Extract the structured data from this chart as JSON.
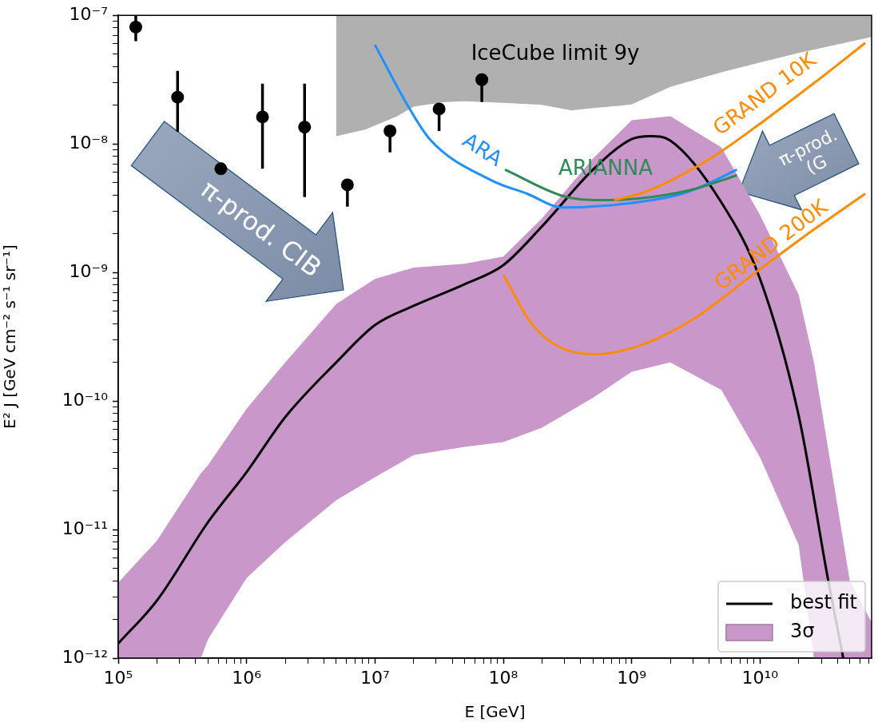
{
  "chart_data": {
    "type": "line",
    "xlabel": "E [GeV]",
    "ylabel": "E² J [GeV cm⁻² s⁻¹ sr⁻¹]",
    "log": "xy",
    "grid": false,
    "legend": "bottom right",
    "xlim": [
      100000.0,
      74000000000.0
    ],
    "xticks": [
      {
        "value": 100000.0,
        "label": "10⁵"
      },
      {
        "value": 200000.0,
        "label": null
      },
      {
        "value": 300000.0,
        "label": null
      },
      {
        "value": 400000.0,
        "label": null
      },
      {
        "value": 500000.0,
        "label": null
      },
      {
        "value": 600000.0,
        "label": null
      },
      {
        "value": 700000.0,
        "label": null
      },
      {
        "value": 800000.0,
        "label": null
      },
      {
        "value": 900000.0,
        "label": null
      },
      {
        "value": 1000000.0,
        "label": "10⁶"
      },
      {
        "value": 2000000.0,
        "label": null
      },
      {
        "value": 3000000.0,
        "label": null
      },
      {
        "value": 4000000.0,
        "label": null
      },
      {
        "value": 5000000.0,
        "label": null
      },
      {
        "value": 6000000.0,
        "label": null
      },
      {
        "value": 7000000.0,
        "label": null
      },
      {
        "value": 8000000.0,
        "label": null
      },
      {
        "value": 9000000.0,
        "label": null
      },
      {
        "value": 10000000.0,
        "label": "10⁷"
      },
      {
        "value": 20000000.0,
        "label": null
      },
      {
        "value": 30000000.0,
        "label": null
      },
      {
        "value": 40000000.0,
        "label": null
      },
      {
        "value": 50000000.0,
        "label": null
      },
      {
        "value": 60000000.0,
        "label": null
      },
      {
        "value": 70000000.0,
        "label": null
      },
      {
        "value": 80000000.0,
        "label": null
      },
      {
        "value": 90000000.0,
        "label": null
      },
      {
        "value": 100000000.0,
        "label": "10⁸"
      },
      {
        "value": 200000000.0,
        "label": null
      },
      {
        "value": 300000000.0,
        "label": null
      },
      {
        "value": 400000000.0,
        "label": null
      },
      {
        "value": 500000000.0,
        "label": null
      },
      {
        "value": 600000000.0,
        "label": null
      },
      {
        "value": 700000000.0,
        "label": null
      },
      {
        "value": 800000000.0,
        "label": null
      },
      {
        "value": 900000000.0,
        "label": null
      },
      {
        "value": 1000000000.0,
        "label": "10⁹"
      },
      {
        "value": 2000000000.0,
        "label": null
      },
      {
        "value": 3000000000.0,
        "label": null
      },
      {
        "value": 4000000000.0,
        "label": null
      },
      {
        "value": 5000000000.0,
        "label": null
      },
      {
        "value": 6000000000.0,
        "label": null
      },
      {
        "value": 7000000000.0,
        "label": null
      },
      {
        "value": 8000000000.0,
        "label": null
      },
      {
        "value": 9000000000.0,
        "label": null
      },
      {
        "value": 10000000000.0,
        "label": "10¹⁰"
      },
      {
        "value": 20000000000.0,
        "label": null
      },
      {
        "value": 30000000000.0,
        "label": null
      },
      {
        "value": 40000000000.0,
        "label": null
      },
      {
        "value": 50000000000.0,
        "label": null
      },
      {
        "value": 60000000000.0,
        "label": null
      },
      {
        "value": 70000000000.0,
        "label": null
      }
    ],
    "ylim": [
      1e-12,
      1e-07
    ],
    "yticks": [
      {
        "value": 1e-12,
        "label": "10⁻¹²"
      },
      {
        "value": 2e-12,
        "label": null
      },
      {
        "value": 3e-12,
        "label": null
      },
      {
        "value": 4e-12,
        "label": null
      },
      {
        "value": 5e-12,
        "label": null
      },
      {
        "value": 6e-12,
        "label": null
      },
      {
        "value": 7e-12,
        "label": null
      },
      {
        "value": 8e-12,
        "label": null
      },
      {
        "value": 9e-12,
        "label": null
      },
      {
        "value": 1e-11,
        "label": "10⁻¹¹"
      },
      {
        "value": 2e-11,
        "label": null
      },
      {
        "value": 3e-11,
        "label": null
      },
      {
        "value": 4e-11,
        "label": null
      },
      {
        "value": 5e-11,
        "label": null
      },
      {
        "value": 6e-11,
        "label": null
      },
      {
        "value": 7e-11,
        "label": null
      },
      {
        "value": 8e-11,
        "label": null
      },
      {
        "value": 9e-11,
        "label": null
      },
      {
        "value": 1e-10,
        "label": "10⁻¹⁰"
      },
      {
        "value": 2e-10,
        "label": null
      },
      {
        "value": 3e-10,
        "label": null
      },
      {
        "value": 4e-10,
        "label": null
      },
      {
        "value": 5e-10,
        "label": null
      },
      {
        "value": 6e-10,
        "label": null
      },
      {
        "value": 7e-10,
        "label": null
      },
      {
        "value": 8e-10,
        "label": null
      },
      {
        "value": 9e-10,
        "label": null
      },
      {
        "value": 1e-09,
        "label": "10⁻⁹"
      },
      {
        "value": 2e-09,
        "label": null
      },
      {
        "value": 3e-09,
        "label": null
      },
      {
        "value": 4e-09,
        "label": null
      },
      {
        "value": 5e-09,
        "label": null
      },
      {
        "value": 6e-09,
        "label": null
      },
      {
        "value": 7e-09,
        "label": null
      },
      {
        "value": 8e-09,
        "label": null
      },
      {
        "value": 9e-09,
        "label": null
      },
      {
        "value": 1e-08,
        "label": "10⁻⁸"
      },
      {
        "value": 2e-08,
        "label": null
      },
      {
        "value": 3e-08,
        "label": null
      },
      {
        "value": 4e-08,
        "label": null
      },
      {
        "value": 5e-08,
        "label": null
      },
      {
        "value": 6e-08,
        "label": null
      },
      {
        "value": 7e-08,
        "label": null
      },
      {
        "value": 8e-08,
        "label": null
      },
      {
        "value": 9e-08,
        "label": null
      },
      {
        "value": 1e-07,
        "label": "10⁻⁷"
      }
    ],
    "annotations": [
      "IceCube limit 9y",
      "ARA",
      "ARIANNA",
      "GRAND 10K",
      "GRAND 200K",
      "π-prod. CIB",
      "π-prod. (G"
    ],
    "series": [
      {
        "name": "best fit",
        "color": "#000000",
        "x": [
          100000.0,
          200000.0,
          500000.0,
          1000000.0,
          2000000.0,
          5000000.0,
          10000000.0,
          20000000.0,
          50000000.0,
          100000000.0,
          200000000.0,
          500000000.0,
          1000000000.0,
          1400000000.0,
          2000000000.0,
          5000000000.0,
          10000000000.0,
          20000000000.0,
          34000000000.0,
          44500000000.0
        ],
        "values": [
          1.3e-12,
          2.8e-12,
          1.14e-11,
          2.8e-11,
          7.5e-11,
          2e-10,
          3.9e-10,
          5.5e-10,
          8.1e-10,
          1.14e-09,
          2.28e-09,
          6.3e-09,
          1.09e-08,
          1.15e-08,
          1.06e-08,
          3.5e-09,
          8.9e-10,
          7.7e-11,
          4e-12,
          1e-12
        ]
      },
      {
        "name": "3σ",
        "color": "#c997ca",
        "x": [
          100000.0,
          200000.0,
          440000.0,
          500000.0,
          1000000.0,
          2000000.0,
          5000000.0,
          10000000.0,
          20000000.0,
          50000000.0,
          100000000.0,
          200000000.0,
          500000000.0,
          1000000000.0,
          2000000000.0,
          5000000000.0,
          10000000000.0,
          20000000000.0,
          26300000000.0,
          50000000000.0,
          74000000000.0
        ],
        "values": [
          null,
          null,
          null,
          null,
          null,
          null,
          null,
          null,
          null,
          null,
          null,
          null,
          null,
          null,
          null,
          null,
          null,
          null,
          null,
          null,
          null
        ],
        "upper": [
          3.86e-12,
          8.2e-12,
          2.74e-11,
          3.16e-11,
          8.7e-11,
          2e-10,
          5.7e-10,
          8.9e-10,
          1.09e-09,
          1.17e-09,
          1.33e-09,
          2.63e-09,
          7.7e-09,
          1.53e-08,
          1.64e-08,
          9.4e-09,
          2.8e-09,
          6.7e-10,
          2e-10,
          4e-12,
          1.9e-12
        ],
        "lower": [
          1e-12,
          1e-12,
          1e-12,
          1.4e-12,
          4.2e-12,
          8e-12,
          1.69e-11,
          2.55e-11,
          3.8e-11,
          4.4e-11,
          4.8e-11,
          6.2e-11,
          1.06e-10,
          1.69e-10,
          2e-10,
          1.22e-10,
          3.65e-11,
          7.6e-12,
          1e-12,
          1e-12,
          1e-12
        ]
      },
      {
        "color": "#b0b0b0",
        "x": [
          5000000.0,
          8400000.0,
          14900000.0,
          20000000.0,
          35000000.0,
          50000000.0,
          100000000.0,
          200000000.0,
          340000000.0,
          500000000.0,
          800000000.0,
          1000000000.0,
          2000000000.0,
          5000000000.0,
          10000000000.0,
          20000000000.0,
          74000000000.0
        ],
        "values": [
          null,
          null,
          null,
          null,
          null,
          null,
          null,
          null,
          null,
          null,
          null,
          null,
          null,
          null,
          null,
          null,
          null
        ],
        "upper": [
          1e-07,
          1e-07,
          1e-07,
          1e-07,
          1e-07,
          1e-07,
          1e-07,
          1e-07,
          1e-07,
          1e-07,
          1e-07,
          1e-07,
          1e-07,
          1e-07,
          1e-07,
          1e-07,
          1e-07
        ],
        "lower": [
          1.15e-08,
          1.29e-08,
          1.64e-08,
          1.95e-08,
          2.12e-08,
          2.15e-08,
          2.09e-08,
          2.01e-08,
          1.82e-08,
          1.9e-08,
          1.98e-08,
          2.03e-08,
          2.78e-08,
          3.6e-08,
          4.3e-08,
          5.1e-08,
          6.8e-08
        ]
      },
      {
        "color": "#1e90ff",
        "x": [
          10000000.0,
          17200000.0,
          26700000.0,
          81000000.0,
          153000000.0,
          290000000.0,
          930000000.0,
          2480000000.0,
          4100000000.0,
          6600000000.0
        ],
        "values": [
          5.9e-08,
          2.15e-08,
          1.09e-08,
          5.2e-09,
          4.1e-09,
          3.2e-09,
          3.44e-09,
          4.1e-09,
          5e-09,
          6.3e-09
        ]
      },
      {
        "color": "#2e8b57",
        "x": [
          103000000.0,
          300000000.0,
          630000000.0,
          1530000000.0,
          3200000000.0,
          6600000000.0
        ],
        "values": [
          6.3e-09,
          3.9e-09,
          3.65e-09,
          3.9e-09,
          4.5e-09,
          5.7e-09
        ]
      },
      {
        "color": "#ff8c00",
        "x": [
          730000000.0,
          1330000000.0,
          4100000000.0,
          10900000000.0,
          29000000000.0,
          66000000000.0
        ],
        "values": [
          3.65e-09,
          4.3e-09,
          7.7e-09,
          1.53e-08,
          3.2e-08,
          6.1e-08
        ]
      },
      {
        "color": "#ff8c00",
        "x": [
          100000000.0,
          169000000.0,
          274000000.0,
          520000000.0,
          1200000000.0,
          3200000000.0,
          8500000000.0,
          22800000000.0,
          66000000000.0
        ],
        "values": [
          9.6e-10,
          3.9e-10,
          2.63e-10,
          2.31e-10,
          2.74e-10,
          4.5e-10,
          9.4e-10,
          1.95e-09,
          4.1e-09
        ]
      },
      {
        "type": "scatter",
        "color": "#000000",
        "marker": "circle",
        "x": [
          137000.0,
          290000.0,
          630000.0,
          1330000.0,
          2830000.0,
          6100000.0,
          13100000.0,
          31600000.0,
          68000000.0
        ],
        "values": [
          8.1e-08,
          2.31e-08,
          6.4e-09,
          1.62e-08,
          1.35e-08,
          4.8e-09,
          1.26e-08,
          1.87e-08,
          3.16e-08
        ],
        "errors": [
          [
            6.3e-08,
            1e-07
          ],
          [
            1.24e-08,
            3.7e-08
          ],
          null,
          [
            6.4e-09,
            2.94e-08
          ],
          [
            3.86e-09,
            2.94e-08
          ],
          [
            3.25e-09,
            4.8e-09
          ],
          [
            8.6e-09,
            1.26e-08
          ],
          [
            1.26e-08,
            1.87e-08
          ],
          [
            2.12e-08,
            3.16e-08
          ]
        ]
      }
    ]
  }
}
